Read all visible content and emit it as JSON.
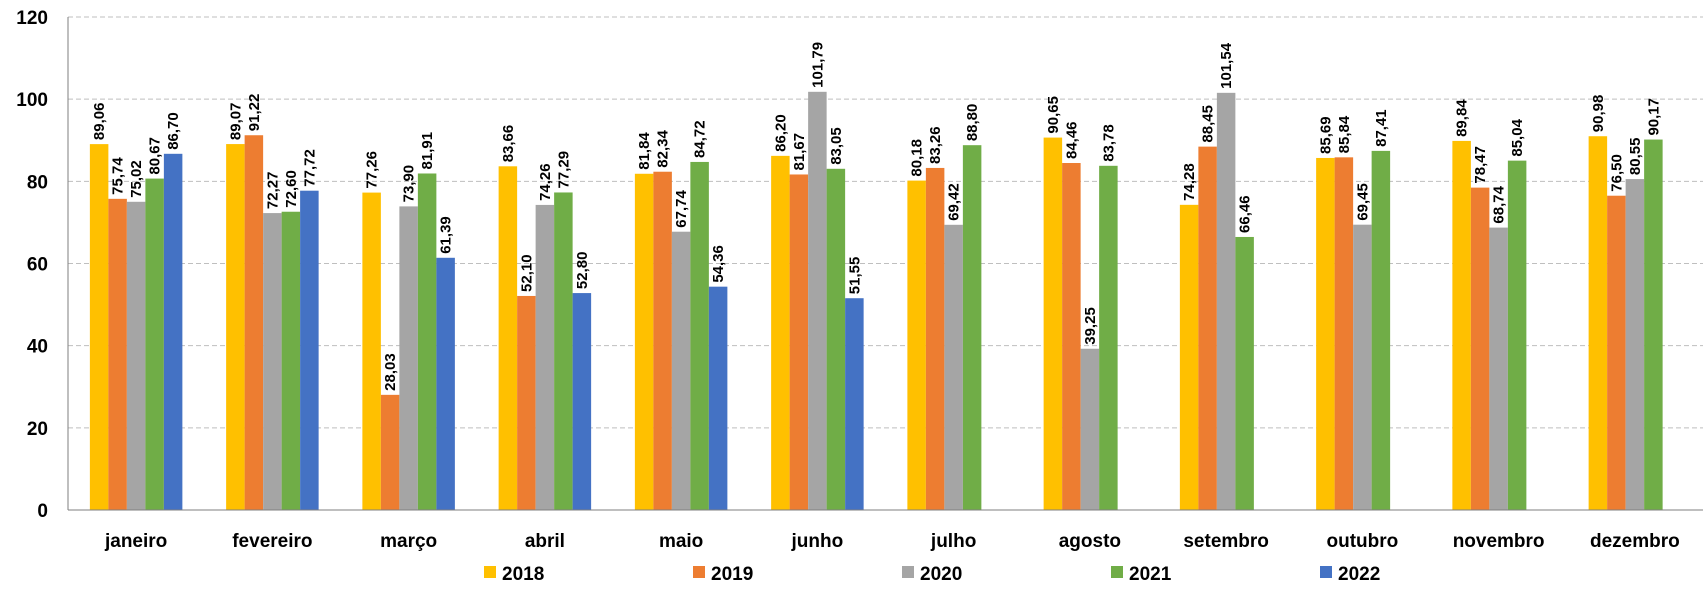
{
  "chart_data": {
    "type": "bar",
    "categories": [
      "janeiro",
      "fevereiro",
      "março",
      "abril",
      "maio",
      "junho",
      "julho",
      "agosto",
      "setembro",
      "outubro",
      "novembro",
      "dezembro"
    ],
    "series": [
      {
        "name": "2018",
        "color": "#FFC000",
        "values": [
          89.06,
          89.07,
          77.26,
          83.66,
          81.84,
          86.2,
          80.18,
          90.65,
          74.28,
          85.69,
          89.84,
          90.98
        ],
        "labels": [
          "89,06",
          "89,07",
          "77,26",
          "83,66",
          "81,84",
          "86,20",
          "80,18",
          "90,65",
          "74,28",
          "85,69",
          "89,84",
          "90,98"
        ]
      },
      {
        "name": "2019",
        "color": "#ED7D31",
        "values": [
          75.74,
          91.22,
          28.03,
          52.1,
          82.34,
          81.67,
          83.26,
          84.46,
          88.45,
          85.84,
          78.47,
          76.5
        ],
        "labels": [
          "75,74",
          "91,22",
          "28,03",
          "52,10",
          "82,34",
          "81,67",
          "83,26",
          "84,46",
          "88,45",
          "85,84",
          "78,47",
          "76,50"
        ]
      },
      {
        "name": "2020",
        "color": "#A5A5A5",
        "values": [
          75.02,
          72.27,
          73.9,
          74.26,
          67.74,
          101.79,
          69.42,
          39.25,
          101.54,
          69.45,
          68.74,
          80.55
        ],
        "labels": [
          "75,02",
          "72,27",
          "73,90",
          "74,26",
          "67,74",
          "101,79",
          "69,42",
          "39,25",
          "101,54",
          "69,45",
          "68,74",
          "80,55"
        ]
      },
      {
        "name": "2021",
        "color": "#70AD47",
        "values": [
          80.67,
          72.6,
          81.91,
          77.29,
          84.72,
          83.05,
          88.8,
          83.78,
          66.46,
          87.41,
          85.04,
          90.17
        ],
        "labels": [
          "80,67",
          "72,60",
          "81,91",
          "77,29",
          "84,72",
          "83,05",
          "88,80",
          "83,78",
          "66,46",
          "87,41",
          "85,04",
          "90,17"
        ]
      },
      {
        "name": "2022",
        "color": "#4472C4",
        "values": [
          86.7,
          77.72,
          61.39,
          52.8,
          54.36,
          51.55,
          null,
          null,
          null,
          null,
          null,
          null
        ],
        "labels": [
          "86,70",
          "77,72",
          "61,39",
          "52,80",
          "54,36",
          "51,55",
          null,
          null,
          null,
          null,
          null,
          null
        ]
      }
    ],
    "yticks": [
      "0",
      "20",
      "40",
      "60",
      "80",
      "100",
      "120"
    ],
    "ylim": [
      0,
      120
    ],
    "grid": true,
    "grid_style": "dashed",
    "legend_position": "bottom"
  }
}
